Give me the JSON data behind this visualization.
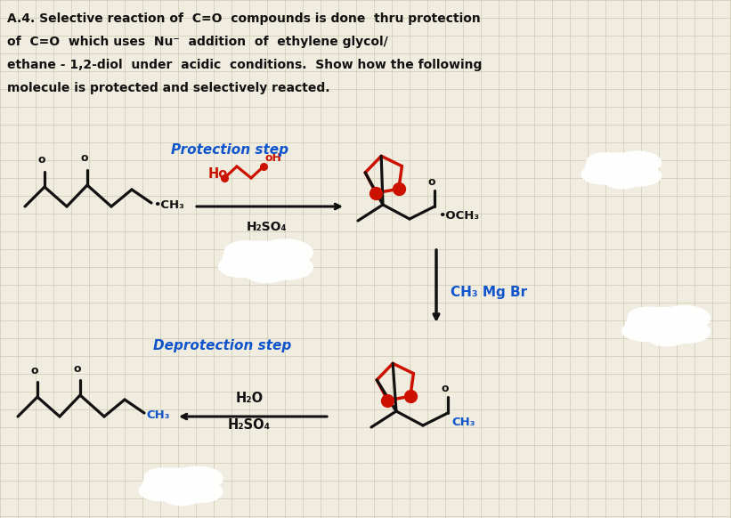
{
  "bg_color": "#f0ede0",
  "grid_color": "#ccc9b0",
  "title_lines": [
    "A.4. Selective reaction of  C=O  compounds is done  thru protection",
    "of  C=O  which uses  Nu⁻  addition  of  ethylene glycol/",
    "ethane - 1,2-diol  under  acidic  conditions.  Show how the following",
    "molecule is protected and selectively reacted."
  ],
  "protection_label": "Protection step",
  "deprotection_label": "Deprotection step",
  "reagent_protection": "H₂SO₄",
  "reagent_grignard": "CH₃ Mg Br",
  "reagent_deprotection_1": "H₂O",
  "reagent_deprotection_2": "H₂SO₄",
  "black": "#111111",
  "red": "#cc1100",
  "blue": "#1155cc",
  "white": "#ffffff"
}
